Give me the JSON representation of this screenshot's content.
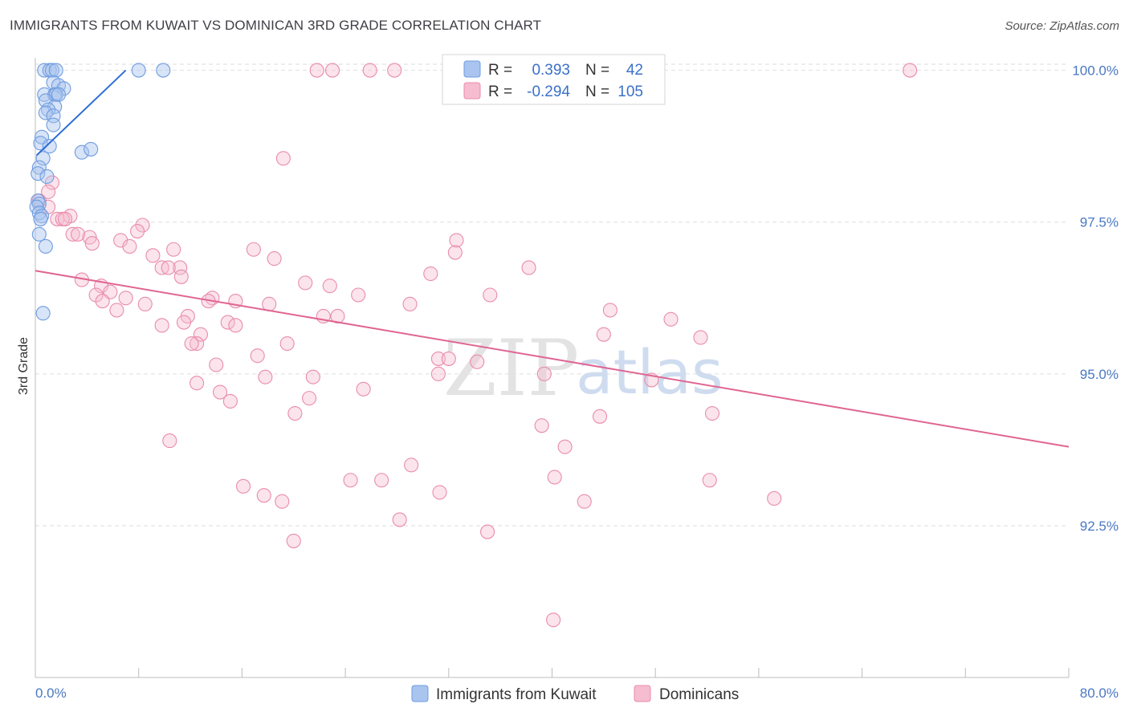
{
  "header": {
    "title": "IMMIGRANTS FROM KUWAIT VS DOMINICAN 3RD GRADE CORRELATION CHART",
    "source": "Source: ZipAtlas.com"
  },
  "watermark": {
    "zip": "ZIP",
    "atlas": "atlas"
  },
  "legend": {
    "r_label": "R =",
    "n_label": "N =",
    "rows": [
      {
        "r": "0.393",
        "n": "42",
        "color": "#a9c4ee",
        "stroke": "#6f9de0"
      },
      {
        "r": "-0.294",
        "n": "105",
        "color": "#f6bcd0",
        "stroke": "#e98cab"
      }
    ]
  },
  "bottom_legend": {
    "items": [
      {
        "label": "Immigrants from Kuwait",
        "color": "#a9c4ee",
        "stroke": "#6f9de0"
      },
      {
        "label": "Dominicans",
        "color": "#f6bcd0",
        "stroke": "#e98cab"
      }
    ]
  },
  "chart_data": {
    "type": "scatter",
    "title": "IMMIGRANTS FROM KUWAIT VS DOMINICAN 3RD GRADE CORRELATION CHART",
    "xlabel": "",
    "ylabel": "3rd Grade",
    "xlim": [
      0,
      80
    ],
    "ylim": [
      90.0,
      100.3
    ],
    "x_tick_labels": [
      "0.0%",
      "80.0%"
    ],
    "y_ticks": [
      92.5,
      95.0,
      97.5,
      100.0
    ],
    "y_tick_labels": [
      "92.5%",
      "95.0%",
      "97.5%",
      "100.0%"
    ],
    "grid": true,
    "legend_position": "top-center",
    "series": [
      {
        "name": "Immigrants from Kuwait",
        "color": "#6f9de0",
        "trend": {
          "x": [
            0.1,
            7.0
          ],
          "y": [
            98.6,
            100.0
          ],
          "color": "#2f6fd6"
        },
        "points": [
          {
            "x": 0.7,
            "y": 100.0
          },
          {
            "x": 1.1,
            "y": 100.0
          },
          {
            "x": 1.3,
            "y": 100.0
          },
          {
            "x": 1.6,
            "y": 100.0
          },
          {
            "x": 8.0,
            "y": 100.0
          },
          {
            "x": 9.9,
            "y": 100.0
          },
          {
            "x": 1.4,
            "y": 99.8
          },
          {
            "x": 1.8,
            "y": 99.75
          },
          {
            "x": 2.2,
            "y": 99.7
          },
          {
            "x": 0.7,
            "y": 99.6
          },
          {
            "x": 1.5,
            "y": 99.6
          },
          {
            "x": 1.6,
            "y": 99.6
          },
          {
            "x": 1.8,
            "y": 99.6
          },
          {
            "x": 0.8,
            "y": 99.5
          },
          {
            "x": 1.5,
            "y": 99.4
          },
          {
            "x": 1.0,
            "y": 99.35
          },
          {
            "x": 0.8,
            "y": 99.3
          },
          {
            "x": 1.4,
            "y": 99.25
          },
          {
            "x": 1.4,
            "y": 99.1
          },
          {
            "x": 0.5,
            "y": 98.9
          },
          {
            "x": 0.4,
            "y": 98.8
          },
          {
            "x": 1.1,
            "y": 98.75
          },
          {
            "x": 3.6,
            "y": 98.65
          },
          {
            "x": 4.3,
            "y": 98.7
          },
          {
            "x": 0.6,
            "y": 98.55
          },
          {
            "x": 0.3,
            "y": 98.4
          },
          {
            "x": 0.2,
            "y": 98.3
          },
          {
            "x": 0.9,
            "y": 98.25
          },
          {
            "x": 0.2,
            "y": 97.85
          },
          {
            "x": 0.3,
            "y": 97.8
          },
          {
            "x": 0.1,
            "y": 97.75
          },
          {
            "x": 0.3,
            "y": 97.65
          },
          {
            "x": 0.5,
            "y": 97.6
          },
          {
            "x": 0.4,
            "y": 97.55
          },
          {
            "x": 0.3,
            "y": 97.3
          },
          {
            "x": 0.8,
            "y": 97.1
          },
          {
            "x": 0.6,
            "y": 96.0
          }
        ]
      },
      {
        "name": "Dominicans",
        "color": "#e98cab",
        "trend": {
          "x": [
            0.0,
            80.0
          ],
          "y": [
            96.7,
            93.8
          ],
          "color": "#e06592"
        },
        "points": [
          {
            "x": 21.8,
            "y": 100.0
          },
          {
            "x": 23.0,
            "y": 100.0
          },
          {
            "x": 25.9,
            "y": 100.0
          },
          {
            "x": 27.8,
            "y": 100.0
          },
          {
            "x": 32.8,
            "y": 100.0
          },
          {
            "x": 45.3,
            "y": 100.0
          },
          {
            "x": 67.7,
            "y": 100.0
          },
          {
            "x": 19.2,
            "y": 98.55
          },
          {
            "x": 1.3,
            "y": 98.15
          },
          {
            "x": 1.0,
            "y": 98.0
          },
          {
            "x": 0.3,
            "y": 97.85
          },
          {
            "x": 1.0,
            "y": 97.75
          },
          {
            "x": 2.7,
            "y": 97.6
          },
          {
            "x": 1.7,
            "y": 97.55
          },
          {
            "x": 2.1,
            "y": 97.55
          },
          {
            "x": 2.3,
            "y": 97.55
          },
          {
            "x": 8.3,
            "y": 97.45
          },
          {
            "x": 7.9,
            "y": 97.35
          },
          {
            "x": 2.9,
            "y": 97.3
          },
          {
            "x": 3.3,
            "y": 97.3
          },
          {
            "x": 4.2,
            "y": 97.25
          },
          {
            "x": 4.4,
            "y": 97.15
          },
          {
            "x": 6.6,
            "y": 97.2
          },
          {
            "x": 7.3,
            "y": 97.1
          },
          {
            "x": 10.7,
            "y": 97.05
          },
          {
            "x": 16.9,
            "y": 97.05
          },
          {
            "x": 32.6,
            "y": 97.2
          },
          {
            "x": 32.5,
            "y": 97.0
          },
          {
            "x": 9.1,
            "y": 96.95
          },
          {
            "x": 18.5,
            "y": 96.9
          },
          {
            "x": 11.2,
            "y": 96.75
          },
          {
            "x": 9.8,
            "y": 96.75
          },
          {
            "x": 10.3,
            "y": 96.75
          },
          {
            "x": 38.2,
            "y": 96.75
          },
          {
            "x": 30.6,
            "y": 96.65
          },
          {
            "x": 11.3,
            "y": 96.6
          },
          {
            "x": 3.6,
            "y": 96.55
          },
          {
            "x": 5.1,
            "y": 96.45
          },
          {
            "x": 20.9,
            "y": 96.5
          },
          {
            "x": 22.8,
            "y": 96.45
          },
          {
            "x": 5.8,
            "y": 96.35
          },
          {
            "x": 4.7,
            "y": 96.3
          },
          {
            "x": 25.0,
            "y": 96.3
          },
          {
            "x": 35.2,
            "y": 96.3
          },
          {
            "x": 7.0,
            "y": 96.25
          },
          {
            "x": 13.7,
            "y": 96.25
          },
          {
            "x": 13.4,
            "y": 96.2
          },
          {
            "x": 15.5,
            "y": 96.2
          },
          {
            "x": 5.2,
            "y": 96.2
          },
          {
            "x": 29.0,
            "y": 96.15
          },
          {
            "x": 8.5,
            "y": 96.15
          },
          {
            "x": 18.1,
            "y": 96.15
          },
          {
            "x": 6.3,
            "y": 96.05
          },
          {
            "x": 44.5,
            "y": 96.05
          },
          {
            "x": 22.3,
            "y": 95.95
          },
          {
            "x": 23.4,
            "y": 95.95
          },
          {
            "x": 11.8,
            "y": 95.95
          },
          {
            "x": 11.5,
            "y": 95.85
          },
          {
            "x": 14.9,
            "y": 95.85
          },
          {
            "x": 49.2,
            "y": 95.9
          },
          {
            "x": 9.8,
            "y": 95.8
          },
          {
            "x": 15.5,
            "y": 95.8
          },
          {
            "x": 12.8,
            "y": 95.65
          },
          {
            "x": 44.0,
            "y": 95.65
          },
          {
            "x": 51.5,
            "y": 95.6
          },
          {
            "x": 12.5,
            "y": 95.5
          },
          {
            "x": 19.5,
            "y": 95.5
          },
          {
            "x": 12.1,
            "y": 95.5
          },
          {
            "x": 17.2,
            "y": 95.3
          },
          {
            "x": 31.2,
            "y": 95.25
          },
          {
            "x": 32.0,
            "y": 95.25
          },
          {
            "x": 34.2,
            "y": 95.2
          },
          {
            "x": 14.0,
            "y": 95.15
          },
          {
            "x": 31.2,
            "y": 95.0
          },
          {
            "x": 39.4,
            "y": 95.0
          },
          {
            "x": 17.8,
            "y": 94.95
          },
          {
            "x": 21.5,
            "y": 94.95
          },
          {
            "x": 47.7,
            "y": 94.9
          },
          {
            "x": 12.5,
            "y": 94.85
          },
          {
            "x": 25.4,
            "y": 94.75
          },
          {
            "x": 14.3,
            "y": 94.7
          },
          {
            "x": 21.2,
            "y": 94.6
          },
          {
            "x": 15.1,
            "y": 94.55
          },
          {
            "x": 20.1,
            "y": 94.35
          },
          {
            "x": 43.7,
            "y": 94.3
          },
          {
            "x": 52.4,
            "y": 94.35
          },
          {
            "x": 39.2,
            "y": 94.15
          },
          {
            "x": 10.4,
            "y": 93.9
          },
          {
            "x": 41.0,
            "y": 93.8
          },
          {
            "x": 29.1,
            "y": 93.5
          },
          {
            "x": 24.4,
            "y": 93.25
          },
          {
            "x": 26.8,
            "y": 93.25
          },
          {
            "x": 40.2,
            "y": 93.3
          },
          {
            "x": 52.2,
            "y": 93.25
          },
          {
            "x": 16.1,
            "y": 93.15
          },
          {
            "x": 17.7,
            "y": 93.0
          },
          {
            "x": 31.3,
            "y": 93.05
          },
          {
            "x": 19.1,
            "y": 92.9
          },
          {
            "x": 42.5,
            "y": 92.9
          },
          {
            "x": 57.2,
            "y": 92.95
          },
          {
            "x": 28.2,
            "y": 92.6
          },
          {
            "x": 35.0,
            "y": 92.4
          },
          {
            "x": 20.0,
            "y": 92.25
          },
          {
            "x": 40.1,
            "y": 90.95
          }
        ]
      }
    ]
  }
}
